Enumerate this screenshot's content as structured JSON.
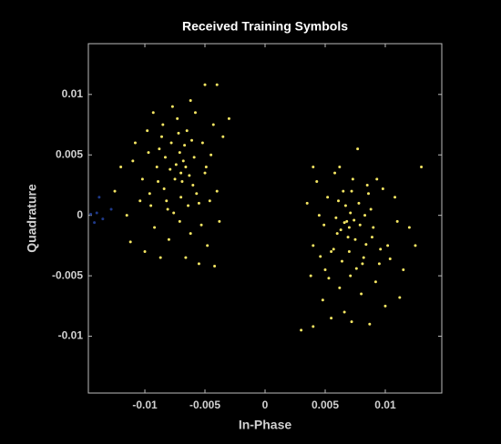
{
  "chart_data": {
    "type": "scatter",
    "title": "Received Training Symbols",
    "x_label": "In-Phase",
    "y_label": "Quadrature",
    "xlim": [
      -0.0147,
      0.0147
    ],
    "ylim": [
      -0.0147,
      0.0142
    ],
    "xticks": [
      -0.01,
      -0.005,
      0,
      0.005,
      0.01
    ],
    "yticks": [
      -0.01,
      -0.005,
      0,
      0.005,
      0.01
    ],
    "grid": false,
    "series": [
      {
        "color": "#f5e663",
        "x": [
          -0.0075,
          -0.0068,
          -0.0082,
          -0.006,
          -0.009,
          -0.0071,
          -0.0055,
          -0.0095,
          -0.0078,
          -0.0065,
          -0.0088,
          -0.005,
          -0.0102,
          -0.007,
          -0.008,
          -0.0062,
          -0.0092,
          -0.0045,
          -0.011,
          -0.0073,
          -0.0058,
          -0.0085,
          -0.0048,
          -0.01,
          -0.0066,
          -0.0079,
          -0.0069,
          -0.0074,
          -0.0063,
          -0.0084,
          -0.0052,
          -0.004,
          -0.0038,
          -0.0035,
          -0.003,
          -0.012,
          -0.0125,
          -0.0115,
          -0.0108,
          -0.0098,
          -0.0093,
          -0.0077,
          -0.0062,
          -0.005,
          -0.004,
          -0.0055,
          -0.0042,
          -0.0087,
          -0.0112,
          -0.0096,
          -0.0081,
          -0.0059,
          -0.0067,
          -0.0071,
          -0.0057,
          -0.0089,
          -0.0076,
          -0.0064,
          -0.0046,
          -0.0053,
          -0.0083,
          -0.0104,
          -0.007,
          -0.0066,
          -0.0061,
          -0.0072,
          -0.0086,
          -0.0043,
          -0.0049,
          -0.0097,
          0.0075,
          0.0068,
          0.0082,
          0.006,
          0.009,
          0.0071,
          0.0055,
          0.0095,
          0.0078,
          0.0065,
          0.0088,
          0.005,
          0.0102,
          0.007,
          0.008,
          0.0062,
          0.0092,
          0.0045,
          0.011,
          0.0073,
          0.0058,
          0.0085,
          0.0048,
          0.01,
          0.0066,
          0.0079,
          0.0069,
          0.0074,
          0.0063,
          0.0084,
          0.0052,
          0.004,
          0.0038,
          0.0035,
          0.004,
          0.012,
          0.0125,
          0.0115,
          0.0108,
          0.0098,
          0.0093,
          0.0077,
          0.0062,
          0.003,
          0.004,
          0.0055,
          0.0072,
          0.0087,
          0.0112,
          0.0096,
          0.0081,
          0.0059,
          0.0067,
          0.0071,
          0.0057,
          0.0089,
          0.0076,
          0.0064,
          0.0046,
          0.0053,
          0.0083,
          0.0104,
          0.007,
          0.0066,
          0.0061,
          0.0072,
          0.0086,
          0.0043,
          0.0049,
          0.013
        ],
        "y": [
          0.003,
          0.0045,
          0.0012,
          0.0025,
          0.004,
          -0.0005,
          0.001,
          0.0008,
          0.006,
          0.007,
          0.0055,
          0.0035,
          0.003,
          0.0015,
          -0.002,
          -0.0015,
          -0.001,
          0.005,
          0.0045,
          0.008,
          0.0085,
          0.0075,
          -0.0025,
          -0.003,
          -0.0035,
          0.0038,
          0.0028,
          0.0042,
          0.0033,
          0.0022,
          0.006,
          0.002,
          -0.0005,
          0.0065,
          0.008,
          0.004,
          0.002,
          0.0,
          0.006,
          0.007,
          0.0085,
          0.009,
          0.0095,
          0.0108,
          0.0108,
          -0.004,
          -0.0042,
          -0.0035,
          -0.0022,
          0.0018,
          0.0005,
          0.0048,
          0.0058,
          0.0052,
          0.0018,
          0.0028,
          0.0002,
          0.0008,
          0.0012,
          -0.0008,
          0.0048,
          0.0012,
          0.0035,
          0.004,
          0.0062,
          0.0068,
          0.0065,
          0.0075,
          0.004,
          0.0052,
          -0.002,
          -0.0005,
          -0.0035,
          -0.0015,
          -0.001,
          -0.005,
          -0.003,
          -0.004,
          0.001,
          0.002,
          0.0005,
          -0.0045,
          -0.0025,
          -0.003,
          -0.0065,
          -0.006,
          -0.0055,
          0.0,
          -0.0005,
          0.003,
          0.0035,
          0.0025,
          -0.007,
          -0.0075,
          -0.008,
          -0.0008,
          -0.0018,
          -0.0004,
          -0.0012,
          -0.0024,
          0.0015,
          -0.0025,
          -0.005,
          0.001,
          0.004,
          -0.001,
          -0.0025,
          -0.0045,
          0.0015,
          0.0022,
          0.003,
          0.0055,
          0.004,
          -0.0095,
          -0.0092,
          -0.0085,
          -0.0088,
          -0.009,
          -0.0068,
          -0.0028,
          -0.004,
          -0.0002,
          0.0008,
          0.0002,
          -0.0028,
          -0.0018,
          -0.0044,
          -0.0038,
          -0.0034,
          -0.0052,
          0.0,
          -0.0036,
          -0.001,
          -0.0006,
          0.0012,
          0.002,
          0.0018,
          0.0028,
          -0.0008,
          0.004
        ]
      },
      {
        "color": "#1f3a8a",
        "x": [
          -0.014,
          -0.0135,
          -0.0145,
          -0.0128,
          -0.0138,
          -0.0142
        ],
        "y": [
          0.0002,
          -0.0003,
          0.0001,
          0.0005,
          0.0015,
          -0.0006
        ]
      }
    ]
  }
}
